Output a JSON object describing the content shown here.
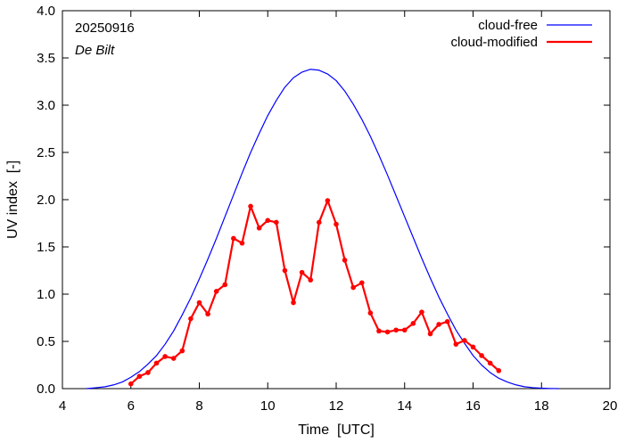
{
  "chart_data": {
    "type": "line",
    "xlabel": "Time  [UTC]",
    "ylabel": "UV index  [-]",
    "xlim": [
      4,
      20
    ],
    "ylim": [
      0,
      4.0
    ],
    "xticks": [
      4,
      6,
      8,
      10,
      12,
      14,
      16,
      18,
      20
    ],
    "xtick_labels": [
      "4",
      "6",
      "8",
      "10",
      "12",
      "14",
      "16",
      "18",
      "20"
    ],
    "yticks": [
      0,
      0.5,
      1.0,
      1.5,
      2.0,
      2.5,
      3.0,
      3.5,
      4.0
    ],
    "ytick_labels": [
      "0.0",
      "0.5",
      "1.0",
      "1.5",
      "2.0",
      "2.5",
      "3.0",
      "3.5",
      "4.0"
    ],
    "grid": false,
    "legend_position": "top-right",
    "annotations": {
      "date": "20250916",
      "location": "De Bilt"
    },
    "series": [
      {
        "name": "cloud-free",
        "color": "#0000ff",
        "style": "line",
        "x": [
          4.7,
          5.0,
          5.25,
          5.5,
          5.75,
          6.0,
          6.25,
          6.5,
          6.75,
          7.0,
          7.25,
          7.5,
          7.75,
          8.0,
          8.25,
          8.5,
          8.75,
          9.0,
          9.25,
          9.5,
          9.75,
          10.0,
          10.25,
          10.5,
          10.75,
          11.0,
          11.25,
          11.5,
          11.75,
          12.0,
          12.25,
          12.5,
          12.75,
          13.0,
          13.25,
          13.5,
          13.75,
          14.0,
          14.25,
          14.5,
          14.75,
          15.0,
          15.25,
          15.5,
          15.75,
          16.0,
          16.25,
          16.5,
          16.75,
          17.0,
          17.25,
          17.5,
          17.75,
          18.0,
          18.25,
          18.5
        ],
        "y": [
          0.0,
          0.01,
          0.02,
          0.04,
          0.07,
          0.12,
          0.18,
          0.26,
          0.35,
          0.47,
          0.61,
          0.78,
          0.96,
          1.16,
          1.37,
          1.59,
          1.82,
          2.05,
          2.28,
          2.5,
          2.7,
          2.89,
          3.05,
          3.19,
          3.29,
          3.35,
          3.38,
          3.37,
          3.33,
          3.26,
          3.15,
          3.01,
          2.85,
          2.67,
          2.47,
          2.26,
          2.04,
          1.82,
          1.6,
          1.38,
          1.17,
          0.97,
          0.79,
          0.62,
          0.48,
          0.35,
          0.25,
          0.17,
          0.11,
          0.07,
          0.04,
          0.02,
          0.01,
          0.005,
          0.002,
          0.0
        ]
      },
      {
        "name": "cloud-modified",
        "color": "#ff0000",
        "style": "line-points",
        "x": [
          6.0,
          6.25,
          6.5,
          6.75,
          7.0,
          7.25,
          7.5,
          7.75,
          8.0,
          8.25,
          8.5,
          8.75,
          9.0,
          9.25,
          9.5,
          9.75,
          10.0,
          10.25,
          10.5,
          10.75,
          11.0,
          11.25,
          11.5,
          11.75,
          12.0,
          12.25,
          12.5,
          12.75,
          13.0,
          13.25,
          13.5,
          13.75,
          14.0,
          14.25,
          14.5,
          14.75,
          15.0,
          15.25,
          15.5,
          15.75,
          16.0,
          16.25,
          16.5,
          16.75
        ],
        "y": [
          0.05,
          0.13,
          0.17,
          0.27,
          0.34,
          0.32,
          0.4,
          0.74,
          0.91,
          0.79,
          1.03,
          1.1,
          1.59,
          1.54,
          1.93,
          1.7,
          1.78,
          1.76,
          1.25,
          0.91,
          1.23,
          1.15,
          1.76,
          1.99,
          1.74,
          1.36,
          1.07,
          1.12,
          0.8,
          0.61,
          0.6,
          0.62,
          0.62,
          0.69,
          0.81,
          0.58,
          0.68,
          0.71,
          0.47,
          0.51,
          0.44,
          0.35,
          0.27,
          0.19
        ]
      }
    ]
  }
}
